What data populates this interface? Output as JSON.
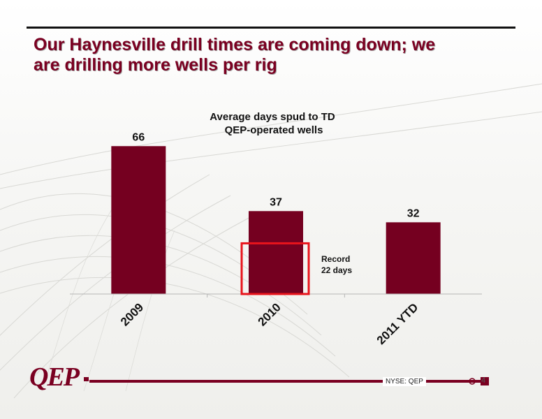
{
  "slide": {
    "title_line1": "Our Haynesville drill times are coming down; we",
    "title_line2": "are drilling more wells per rig",
    "footer_ticker": "NYSE: QEP",
    "page_number": "4"
  },
  "logo": {
    "text": "QEP"
  },
  "colors": {
    "brand": "#7a0021",
    "bar": "#750020",
    "highlight_box": "#e8141c",
    "background": "#f4f4f2"
  },
  "chart_data": {
    "type": "bar",
    "title_line1": "Average days spud to TD",
    "title_line2": "QEP-operated wells",
    "categories": [
      "2009",
      "2010",
      "2011 YTD"
    ],
    "values": [
      66,
      37,
      32
    ],
    "data_labels": [
      "66",
      "37",
      "32"
    ],
    "ylim": [
      0,
      72
    ],
    "grid": false,
    "legend": "none",
    "annotation": {
      "category": "2010",
      "value": 22,
      "text_line1": "Record",
      "text_line2": "22 days"
    }
  }
}
